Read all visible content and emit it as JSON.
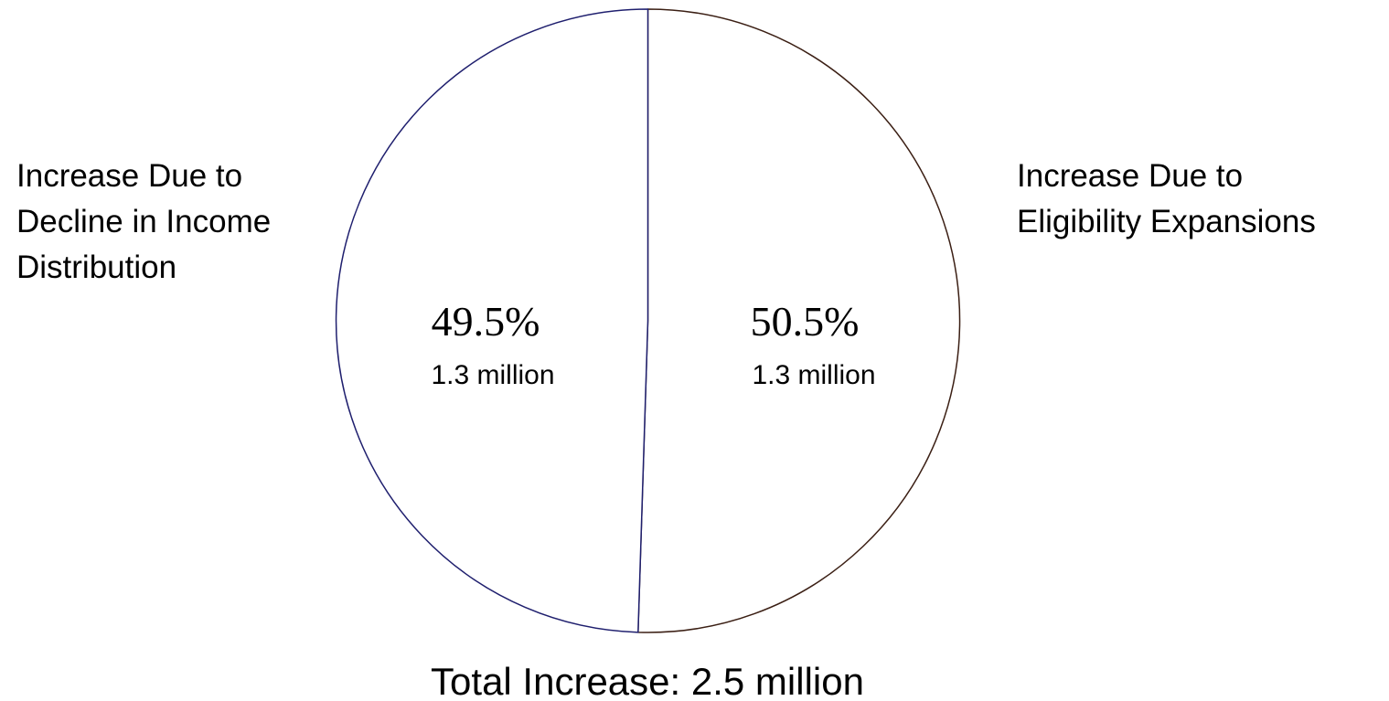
{
  "chart_data": {
    "type": "pie",
    "slices": [
      {
        "label_lines": [
          "Increase Due to",
          "Eligibility Expansions"
        ],
        "percent": 50.5,
        "percent_label": "50.5%",
        "value_label": "1.3 million",
        "value": 1.3,
        "stroke": "#3b1f14"
      },
      {
        "label_lines": [
          "Increase Due to",
          "Decline in Income",
          "Distribution"
        ],
        "percent": 49.5,
        "percent_label": "49.5%",
        "value_label": "1.3 million",
        "value": 1.3,
        "stroke": "#1f1f6e"
      }
    ],
    "total_label": "Total Increase: 2.5 million",
    "fill": "#ffffff",
    "legend": "none"
  }
}
